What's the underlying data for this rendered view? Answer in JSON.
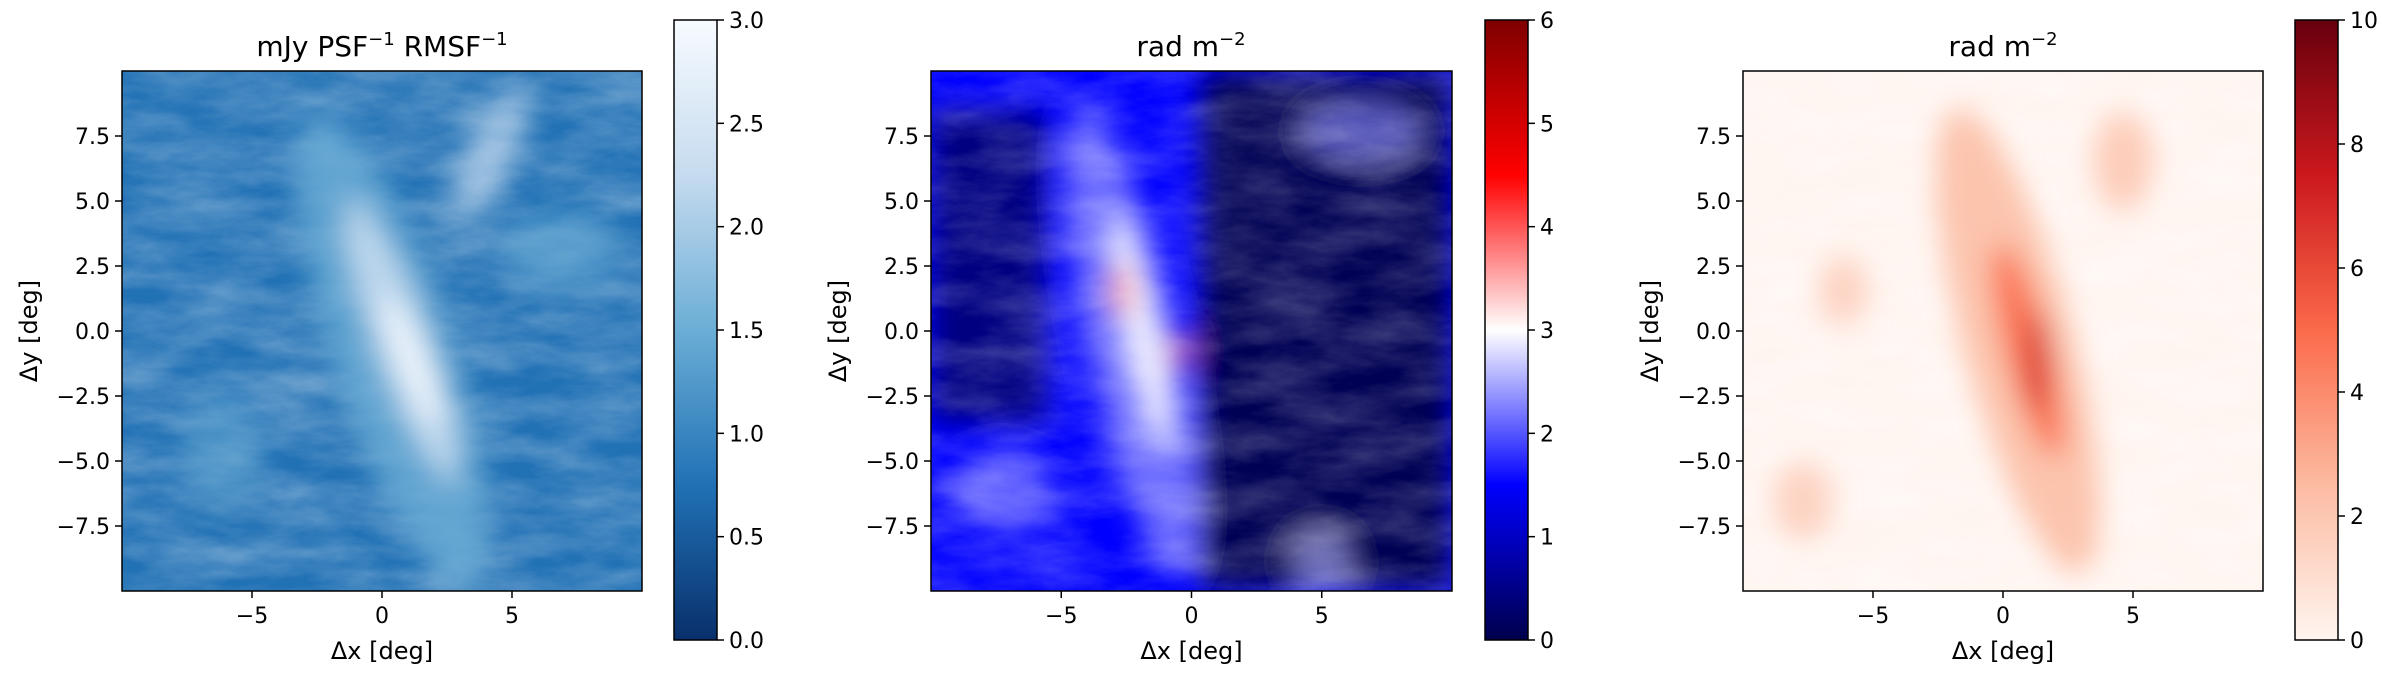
{
  "chart_data": [
    {
      "type": "heatmap",
      "title": "mJy PSF$^{-1}$ RMSF$^{-1}$",
      "title_parts": [
        "mJy PSF",
        "−1",
        " RMSF",
        "−1"
      ],
      "xlabel": "Δx [deg]",
      "ylabel": "Δy [deg]",
      "xlim": [
        -10,
        10
      ],
      "ylim": [
        -10,
        10
      ],
      "xticks": [
        -5,
        0,
        5
      ],
      "xtick_labels": [
        "−5",
        "0",
        "5"
      ],
      "yticks": [
        -7.5,
        -5.0,
        -2.5,
        0.0,
        2.5,
        5.0,
        7.5
      ],
      "ytick_labels": [
        "−7.5",
        "−5.0",
        "−2.5",
        "0.0",
        "2.5",
        "5.0",
        "7.5"
      ],
      "colormap": "Blues_r",
      "colorbar_range": [
        0,
        3.0
      ],
      "colorbar_ticks": [
        0,
        0.5,
        1.0,
        1.5,
        2.0,
        2.5,
        3.0
      ],
      "colorbar_tick_labels": [
        "0.0",
        "0.5",
        "1.0",
        "1.5",
        "2.0",
        "2.5",
        "3.0"
      ],
      "colors": [
        "#08306b",
        "#2171b5",
        "#6baed6",
        "#c6dbef",
        "#f7fbff"
      ]
    },
    {
      "type": "heatmap",
      "title": "rad m$^{-2}$",
      "title_parts": [
        "rad m",
        "−2"
      ],
      "xlabel": "Δx [deg]",
      "ylabel": "Δy [deg]",
      "xlim": [
        -10,
        10
      ],
      "ylim": [
        -10,
        10
      ],
      "xticks": [
        -5,
        0,
        5
      ],
      "xtick_labels": [
        "−5",
        "0",
        "5"
      ],
      "yticks": [
        -7.5,
        -5.0,
        -2.5,
        0.0,
        2.5,
        5.0,
        7.5
      ],
      "ytick_labels": [
        "−7.5",
        "−5.0",
        "−2.5",
        "0.0",
        "2.5",
        "5.0",
        "7.5"
      ],
      "colormap": "seismic",
      "colorbar_range": [
        0,
        6
      ],
      "colorbar_ticks": [
        0,
        1,
        2,
        3,
        4,
        5,
        6
      ],
      "colorbar_tick_labels": [
        "0",
        "1",
        "2",
        "3",
        "4",
        "5",
        "6"
      ],
      "colors": [
        "#00004c",
        "#0000ff",
        "#ffffff",
        "#ff0000",
        "#7f0000"
      ]
    },
    {
      "type": "heatmap",
      "title": "rad m$^{-2}$",
      "title_parts": [
        "rad m",
        "−2"
      ],
      "xlabel": "Δx [deg]",
      "ylabel": "Δy [deg]",
      "xlim": [
        -10,
        10
      ],
      "ylim": [
        -10,
        10
      ],
      "xticks": [
        -5,
        0,
        5
      ],
      "xtick_labels": [
        "−5",
        "0",
        "5"
      ],
      "yticks": [
        -7.5,
        -5.0,
        -2.5,
        0.0,
        2.5,
        5.0,
        7.5
      ],
      "ytick_labels": [
        "−7.5",
        "−5.0",
        "−2.5",
        "0.0",
        "2.5",
        "5.0",
        "7.5"
      ],
      "colormap": "Reds",
      "colorbar_range": [
        0,
        10
      ],
      "colorbar_ticks": [
        0,
        2,
        4,
        6,
        8,
        10
      ],
      "colorbar_tick_labels": [
        "0",
        "2",
        "4",
        "6",
        "8",
        "10"
      ],
      "colors": [
        "#fff5f0",
        "#fcbba1",
        "#fb6a4a",
        "#cb181d",
        "#67000d"
      ]
    }
  ]
}
